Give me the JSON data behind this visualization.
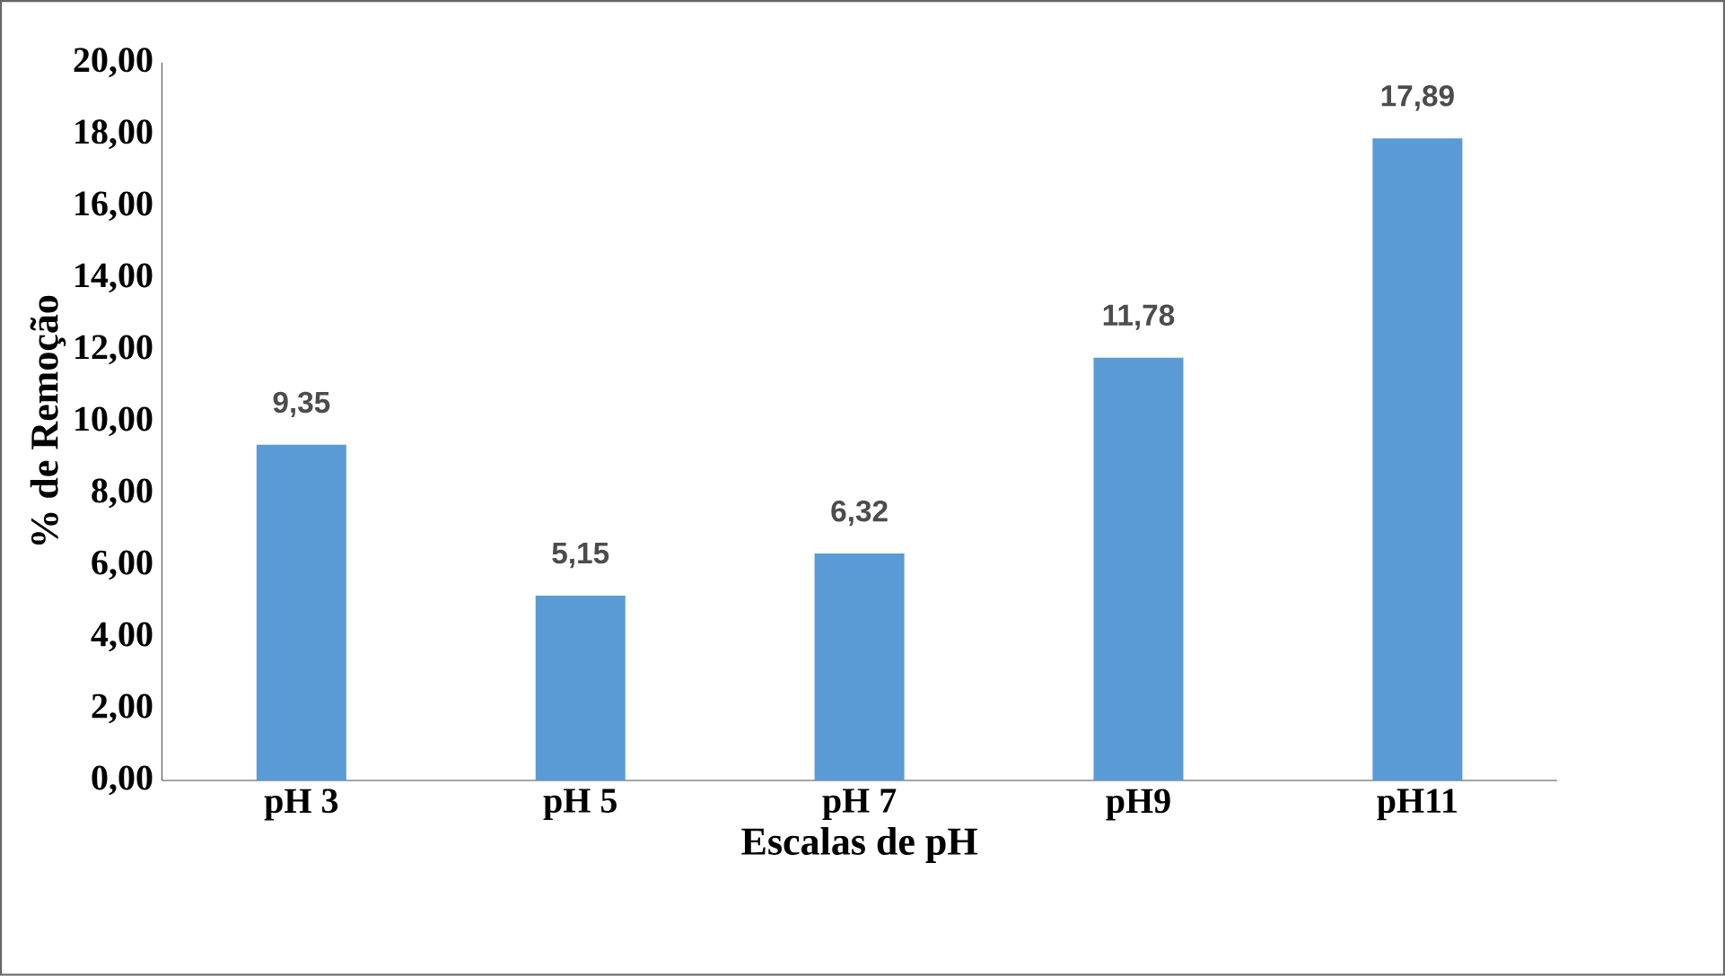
{
  "chart_data": {
    "type": "bar",
    "xlabel": "Escalas de pH",
    "ylabel": "% de Remoção",
    "categories": [
      "pH 3",
      "pH 5",
      "pH 7",
      "pH9",
      "pH11"
    ],
    "values": [
      9.35,
      5.15,
      6.32,
      11.78,
      17.89
    ],
    "value_labels": [
      "9,35",
      "5,15",
      "6,32",
      "11,78",
      "17,89"
    ],
    "color": "#5b9bd5",
    "ylim": [
      0,
      20
    ],
    "yticks": [
      {
        "value": 0,
        "label": "0,00"
      },
      {
        "value": 2,
        "label": "2,00"
      },
      {
        "value": 4,
        "label": "4,00"
      },
      {
        "value": 6,
        "label": "6,00"
      },
      {
        "value": 8,
        "label": "8,00"
      },
      {
        "value": 10,
        "label": "10,00"
      },
      {
        "value": 12,
        "label": "12,00"
      },
      {
        "value": 14,
        "label": "14,00"
      },
      {
        "value": 16,
        "label": "16,00"
      },
      {
        "value": 18,
        "label": "18,00"
      },
      {
        "value": 20,
        "label": "20,00"
      }
    ]
  }
}
